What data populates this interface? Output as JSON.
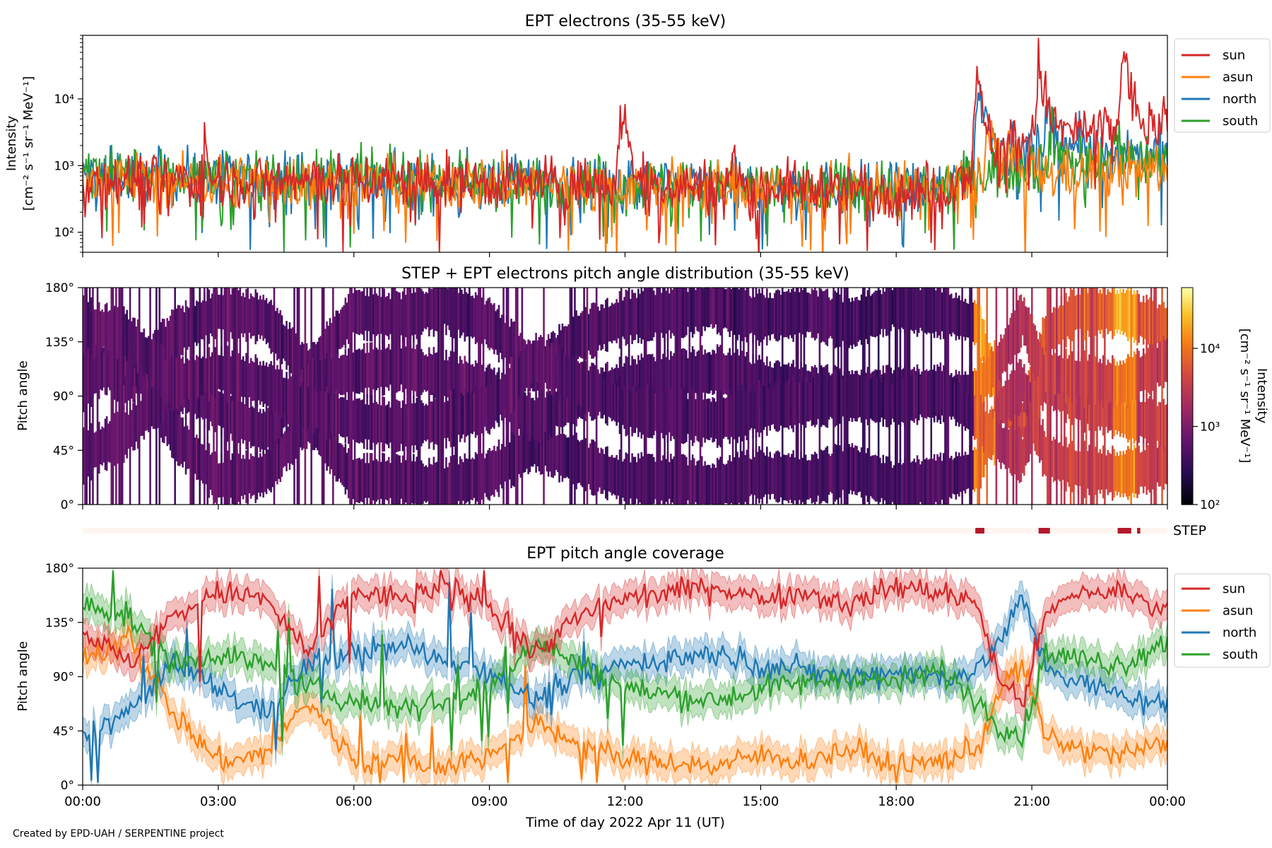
{
  "credit": "Created by EPD-UAH / SERPENTINE project",
  "x_axis": {
    "label": "Time of day 2022 Apr 11 (UT)",
    "ticks": [
      "00:00",
      "03:00",
      "06:00",
      "09:00",
      "12:00",
      "15:00",
      "18:00",
      "21:00",
      "00:00"
    ],
    "range_hours": [
      0,
      24
    ]
  },
  "colors": {
    "sun": "#d62728",
    "asun": "#ff7f0e",
    "north": "#1f77b4",
    "south": "#2ca02c",
    "step_bar": "#b2182b",
    "step_bg": "#fff5f0"
  },
  "chart_data": [
    {
      "type": "line",
      "title": "EPT electrons (35-55 keV)",
      "ylabel_line1": "Intensity",
      "ylabel_line2": "[cm⁻² s⁻¹ sr⁻¹ MeV⁻¹]",
      "yscale": "log",
      "ylim": [
        50,
        90000
      ],
      "yticks": [
        {
          "v": 100,
          "label": "10²"
        },
        {
          "v": 1000,
          "label": "10³"
        },
        {
          "v": 10000,
          "label": "10⁴"
        }
      ],
      "legend_position": "outside-top-right",
      "series": [
        {
          "name": "sun",
          "key": "sun",
          "base": 620,
          "trend": [
            [
              0,
              620
            ],
            [
              6,
              600
            ],
            [
              12,
              520
            ],
            [
              19,
              420
            ],
            [
              19.8,
              900
            ],
            [
              21,
              3000
            ],
            [
              24,
              4000
            ]
          ],
          "events": [
            [
              2.7,
              0.05,
              2100
            ],
            [
              11.9,
              0.12,
              6500
            ],
            [
              14.4,
              0.06,
              1600
            ],
            [
              19.75,
              0.12,
              19000
            ],
            [
              21.15,
              0.1,
              35000
            ],
            [
              23.0,
              0.1,
              60000
            ]
          ]
        },
        {
          "name": "asun",
          "key": "asun",
          "base": 600,
          "trend": [
            [
              0,
              600
            ],
            [
              12,
              500
            ],
            [
              19,
              400
            ],
            [
              20,
              700
            ],
            [
              21,
              700
            ],
            [
              24,
              900
            ]
          ],
          "events": [
            [
              20.0,
              0.3,
              2500
            ]
          ]
        },
        {
          "name": "north",
          "key": "north",
          "base": 650,
          "trend": [
            [
              0,
              700
            ],
            [
              12,
              520
            ],
            [
              19,
              420
            ],
            [
              19.8,
              1000
            ],
            [
              21,
              1800
            ],
            [
              24,
              1500
            ]
          ],
          "events": [
            [
              19.8,
              0.15,
              16000
            ],
            [
              21.3,
              0.2,
              4500
            ]
          ]
        },
        {
          "name": "south",
          "key": "south",
          "base": 650,
          "trend": [
            [
              0,
              750
            ],
            [
              12,
              520
            ],
            [
              19,
              420
            ],
            [
              20,
              800
            ],
            [
              21,
              1000
            ],
            [
              24,
              1200
            ]
          ],
          "events": [
            [
              21.4,
              0.2,
              2000
            ],
            [
              22.8,
              0.1,
              4000
            ]
          ]
        }
      ]
    },
    {
      "type": "heatmap",
      "title": "STEP + EPT electrons pitch angle distribution (35-55 keV)",
      "ylabel": "Pitch angle",
      "ylim": [
        0,
        180
      ],
      "yticks": [
        {
          "v": 0,
          "label": "0°"
        },
        {
          "v": 45,
          "label": "45°"
        },
        {
          "v": 90,
          "label": "90°"
        },
        {
          "v": 135,
          "label": "135°"
        },
        {
          "v": 180,
          "label": "180°"
        }
      ],
      "colorbar": {
        "label_line1": "Intensity",
        "label_line2": "[cm⁻² s⁻¹ sr⁻¹ MeV⁻¹]",
        "scale": "log",
        "range": [
          100,
          60000
        ],
        "ticks": [
          {
            "v": 100,
            "label": "10²"
          },
          {
            "v": 1000,
            "label": "10³"
          },
          {
            "v": 10000,
            "label": "10⁴"
          }
        ],
        "colormap": "inferno"
      }
    },
    {
      "type": "bar",
      "label": "STEP",
      "segments_hours": [
        [
          19.75,
          19.95
        ],
        [
          21.15,
          21.4
        ],
        [
          22.9,
          23.2
        ],
        [
          23.33,
          23.4
        ]
      ]
    },
    {
      "type": "area",
      "title": "EPT pitch angle coverage",
      "ylabel": "Pitch angle",
      "ylim": [
        0,
        180
      ],
      "yticks": [
        {
          "v": 0,
          "label": "0°"
        },
        {
          "v": 45,
          "label": "45°"
        },
        {
          "v": 90,
          "label": "90°"
        },
        {
          "v": 135,
          "label": "135°"
        },
        {
          "v": 180,
          "label": "180°"
        }
      ],
      "legend_position": "outside-top-right",
      "band_halfwidth_deg": 12,
      "series": [
        {
          "name": "sun",
          "key": "sun",
          "path": [
            [
              0,
              130
            ],
            [
              1,
              100
            ],
            [
              2,
              140
            ],
            [
              3,
              160
            ],
            [
              4,
              155
            ],
            [
              5,
              110
            ],
            [
              6,
              160
            ],
            [
              7,
              155
            ],
            [
              8,
              165
            ],
            [
              9,
              150
            ],
            [
              10,
              110
            ],
            [
              11,
              140
            ],
            [
              12,
              155
            ],
            [
              13,
              160
            ],
            [
              14,
              165
            ],
            [
              15,
              155
            ],
            [
              16,
              160
            ],
            [
              17,
              150
            ],
            [
              18,
              165
            ],
            [
              19,
              160
            ],
            [
              19.8,
              150
            ],
            [
              20.3,
              85
            ],
            [
              20.8,
              70
            ],
            [
              21.3,
              140
            ],
            [
              22,
              160
            ],
            [
              23,
              160
            ],
            [
              24,
              145
            ]
          ]
        },
        {
          "name": "asun",
          "key": "asun",
          "path": [
            [
              0,
              100
            ],
            [
              1,
              125
            ],
            [
              2,
              60
            ],
            [
              3,
              20
            ],
            [
              4,
              25
            ],
            [
              5,
              70
            ],
            [
              6,
              20
            ],
            [
              7,
              20
            ],
            [
              8,
              15
            ],
            [
              9,
              25
            ],
            [
              10,
              50
            ],
            [
              11,
              35
            ],
            [
              12,
              20
            ],
            [
              13,
              20
            ],
            [
              14,
              15
            ],
            [
              15,
              25
            ],
            [
              16,
              20
            ],
            [
              17,
              30
            ],
            [
              18,
              15
            ],
            [
              19,
              20
            ],
            [
              19.8,
              30
            ],
            [
              20.3,
              80
            ],
            [
              20.8,
              100
            ],
            [
              21.3,
              40
            ],
            [
              22,
              30
            ],
            [
              23,
              25
            ],
            [
              24,
              35
            ]
          ]
        },
        {
          "name": "north",
          "key": "north",
          "path": [
            [
              0,
              40
            ],
            [
              1,
              60
            ],
            [
              2,
              100
            ],
            [
              3,
              80
            ],
            [
              4,
              60
            ],
            [
              5,
              100
            ],
            [
              6,
              110
            ],
            [
              7,
              115
            ],
            [
              8,
              105
            ],
            [
              9,
              95
            ],
            [
              10,
              70
            ],
            [
              11,
              90
            ],
            [
              12,
              100
            ],
            [
              13,
              105
            ],
            [
              14,
              110
            ],
            [
              15,
              100
            ],
            [
              16,
              95
            ],
            [
              17,
              90
            ],
            [
              18,
              95
            ],
            [
              19,
              90
            ],
            [
              19.8,
              95
            ],
            [
              20.3,
              120
            ],
            [
              20.8,
              155
            ],
            [
              21.3,
              100
            ],
            [
              22,
              85
            ],
            [
              23,
              75
            ],
            [
              24,
              65
            ]
          ]
        },
        {
          "name": "south",
          "key": "south",
          "path": [
            [
              0,
              150
            ],
            [
              1,
              140
            ],
            [
              2,
              100
            ],
            [
              3,
              110
            ],
            [
              4,
              100
            ],
            [
              5,
              80
            ],
            [
              6,
              70
            ],
            [
              7,
              65
            ],
            [
              8,
              70
            ],
            [
              9,
              80
            ],
            [
              10,
              120
            ],
            [
              11,
              100
            ],
            [
              12,
              80
            ],
            [
              13,
              75
            ],
            [
              14,
              70
            ],
            [
              15,
              80
            ],
            [
              16,
              85
            ],
            [
              17,
              90
            ],
            [
              18,
              85
            ],
            [
              19,
              95
            ],
            [
              19.8,
              70
            ],
            [
              20.3,
              50
            ],
            [
              20.8,
              40
            ],
            [
              21.3,
              110
            ],
            [
              22,
              105
            ],
            [
              23,
              100
            ],
            [
              24,
              120
            ]
          ]
        }
      ]
    }
  ]
}
